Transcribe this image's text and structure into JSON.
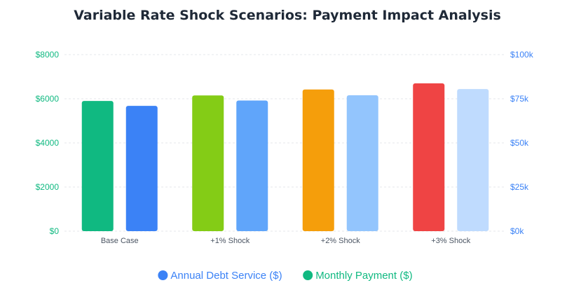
{
  "chart_data": {
    "type": "bar",
    "title": "Variable Rate Shock Scenarios: Payment Impact Analysis",
    "categories": [
      "Base Case",
      "+1% Shock",
      "+2% Shock",
      "+3% Shock"
    ],
    "series": [
      {
        "name": "Monthly Payment ($)",
        "axis": "left",
        "values": [
          5900,
          6150,
          6420,
          6700
        ],
        "colors": [
          "#10b981",
          "#84cc16",
          "#f59e0b",
          "#ef4444"
        ]
      },
      {
        "name": "Annual Debt Service ($)",
        "axis": "right",
        "values": [
          71000,
          74000,
          77000,
          80500
        ],
        "colors": [
          "#3b82f6",
          "#60a5fa",
          "#93c5fd",
          "#bfdbfe"
        ]
      }
    ],
    "y_left": {
      "min": 0,
      "max": 8000,
      "ticks": [
        "$0",
        "$2000",
        "$4000",
        "$6000",
        "$8000"
      ],
      "color": "#10b981"
    },
    "y_right": {
      "min": 0,
      "max": 100000,
      "ticks": [
        "$0k",
        "$25k",
        "$50k",
        "$75k",
        "$100k"
      ],
      "color": "#3b82f6"
    },
    "grid": true,
    "legend": {
      "placement": "bottom-center",
      "items": [
        {
          "label": "Annual Debt Service ($)",
          "color": "#3b82f6"
        },
        {
          "label": "Monthly Payment ($)",
          "color": "#10b981"
        }
      ]
    }
  }
}
